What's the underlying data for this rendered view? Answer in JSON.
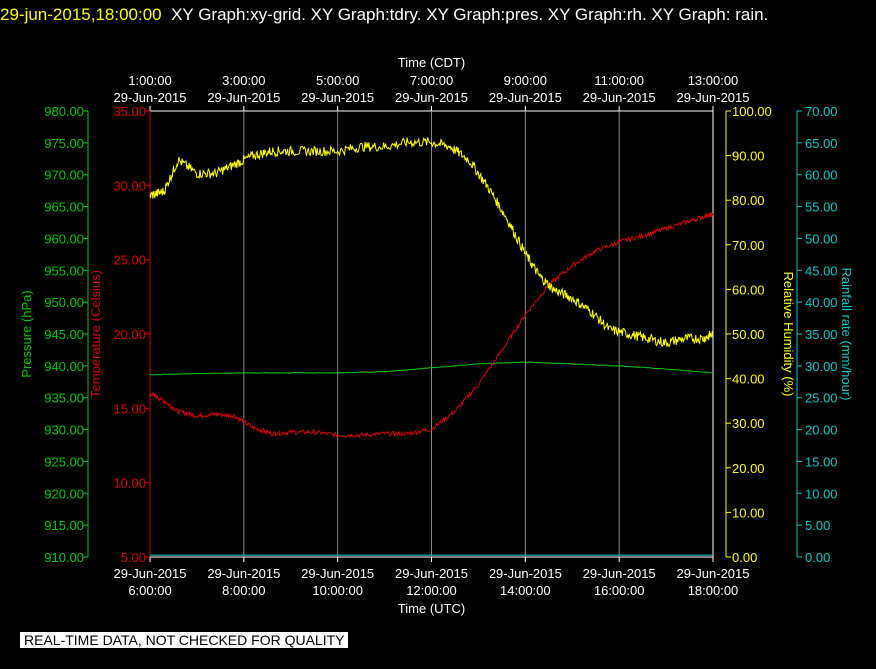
{
  "header": {
    "timestamp": "29-jun-2015,18:00:00",
    "title": "XY Graph:xy-grid.  XY Graph:tdry.  XY Graph:pres.  XY Graph:rh.  XY Graph: rain."
  },
  "disclaimer": "REAL-TIME DATA, NOT CHECKED FOR QUALITY",
  "colors": {
    "pressure": "#00cc00",
    "temperature": "#dd0000",
    "humidity": "#ffff00",
    "rainfall": "#00cccc",
    "grid": "#888888",
    "frame": "#ffffff"
  },
  "chart_data": {
    "type": "line",
    "x_utc": [
      "6:00:00",
      "8:00:00",
      "10:00:00",
      "12:00:00",
      "14:00:00",
      "16:00:00",
      "18:00:00"
    ],
    "x_cdt": [
      "1:00:00",
      "3:00:00",
      "5:00:00",
      "7:00:00",
      "9:00:00",
      "11:00:00",
      "13:00:00"
    ],
    "date_label": "29-Jun-2015",
    "xlabel_bottom": "Time (UTC)",
    "xlabel_top": "Time (CDT)",
    "xlim_hours_utc": [
      6,
      18
    ],
    "axes": {
      "pressure": {
        "label": "Pressure (hPa)",
        "ylim": [
          910,
          980
        ],
        "ticks": [
          "910.00",
          "915.00",
          "920.00",
          "925.00",
          "930.00",
          "935.00",
          "940.00",
          "945.00",
          "950.00",
          "955.00",
          "960.00",
          "965.00",
          "970.00",
          "975.00",
          "980.00"
        ]
      },
      "temperature": {
        "label": "Temperature (Celsius)",
        "ylim": [
          5,
          35
        ],
        "ticks": [
          "5.00",
          "10.00",
          "15.00",
          "20.00",
          "25.00",
          "30.00",
          "35.00"
        ]
      },
      "humidity": {
        "label": "Relative Humidity (%)",
        "ylim": [
          0,
          100
        ],
        "ticks": [
          "0.00",
          "10.00",
          "20.00",
          "30.00",
          "40.00",
          "50.00",
          "60.00",
          "70.00",
          "80.00",
          "90.00",
          "100.00"
        ]
      },
      "rainfall": {
        "label": "Rainfall rate (mm/hour)",
        "ylim": [
          0,
          70
        ],
        "ticks": [
          "0.00",
          "5.00",
          "10.00",
          "15.00",
          "20.00",
          "25.00",
          "30.00",
          "35.00",
          "40.00",
          "45.00",
          "50.00",
          "55.00",
          "60.00",
          "65.00",
          "70.00"
        ]
      }
    },
    "series": [
      {
        "name": "Pressure",
        "axis": "pressure",
        "x": [
          6,
          7,
          8,
          9,
          10,
          11,
          12,
          13,
          14,
          15,
          16,
          17,
          18
        ],
        "values": [
          938.6,
          938.8,
          938.9,
          938.9,
          938.9,
          939.1,
          939.7,
          940.3,
          940.6,
          940.3,
          940.0,
          939.5,
          938.9
        ]
      },
      {
        "name": "Temperature",
        "axis": "temperature",
        "x": [
          6,
          6.3,
          6.6,
          7,
          7.4,
          7.8,
          8.2,
          8.6,
          9,
          9.5,
          10,
          10.5,
          11,
          11.5,
          12,
          12.5,
          13,
          13.5,
          14,
          14.5,
          15,
          15.5,
          16,
          16.5,
          17,
          17.5,
          17.9,
          18
        ],
        "values": [
          16.0,
          15.5,
          14.8,
          14.5,
          14.6,
          14.5,
          13.7,
          13.3,
          13.4,
          13.4,
          13.2,
          13.2,
          13.3,
          13.3,
          13.6,
          14.8,
          16.6,
          18.9,
          21.3,
          23.3,
          24.6,
          25.6,
          26.2,
          26.6,
          27.1,
          27.6,
          28.0,
          28.0
        ]
      },
      {
        "name": "Relative Humidity",
        "axis": "humidity",
        "x": [
          6,
          6.3,
          6.6,
          7,
          7.4,
          7.8,
          8.2,
          8.6,
          9,
          9.5,
          10,
          10.5,
          11,
          11.5,
          12,
          12.4,
          12.8,
          13.2,
          13.6,
          14,
          14.3,
          14.6,
          15,
          15.4,
          15.8,
          16.2,
          16.6,
          17,
          17.4,
          17.8,
          18
        ],
        "values": [
          81,
          82,
          89,
          86,
          86,
          88,
          90,
          91,
          91,
          91,
          91,
          92,
          92,
          93,
          93,
          92,
          89,
          83,
          76,
          68,
          63,
          60,
          58,
          55,
          51,
          50,
          49,
          48,
          49,
          49,
          50
        ]
      },
      {
        "name": "Rainfall rate",
        "axis": "rainfall",
        "x": [
          6,
          18
        ],
        "values": [
          0.3,
          0.3
        ]
      }
    ]
  }
}
